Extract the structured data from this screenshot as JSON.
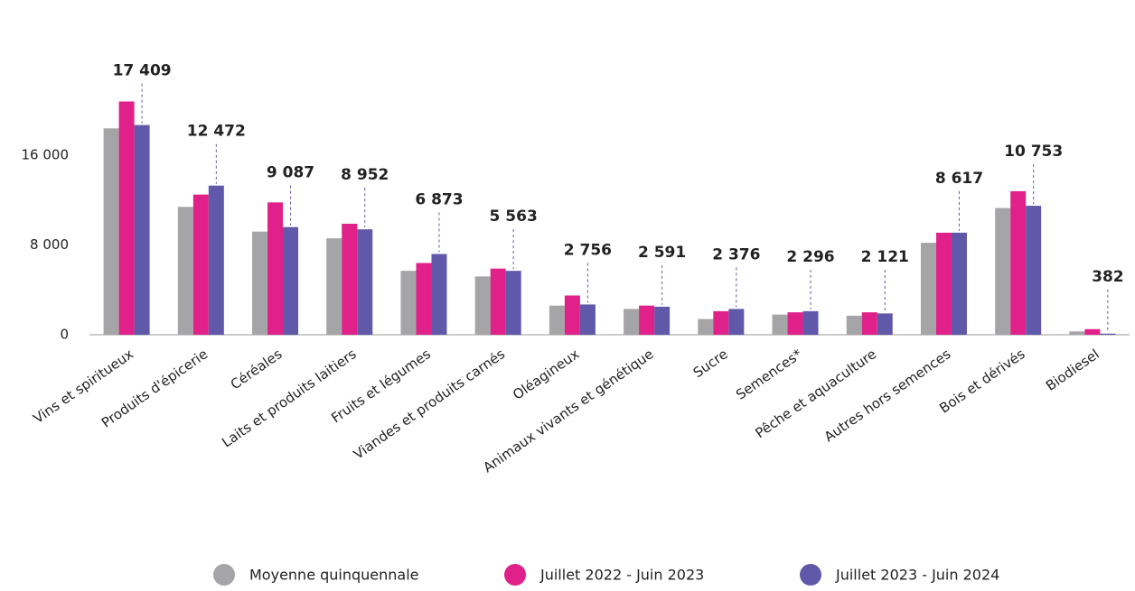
{
  "chart_data": {
    "type": "bar",
    "categories": [
      "Vins et spiritueux",
      "Produits d'épicerie",
      "Céréales",
      "Laits et produits laitiers",
      "Fruits et légumes",
      "Viandes et produits carnés",
      "Oléagineux",
      "Animaux vivants et génétique",
      "Sucre",
      "Semences*",
      "Pêche et aquaculture",
      "Autres hors semences",
      "Bois et dérivés",
      "Biodiesel"
    ],
    "series": [
      {
        "name": "Moyenne quinquennale",
        "color": "#a5a5a7",
        "values": [
          18400,
          11400,
          9200,
          8600,
          5700,
          5200,
          2600,
          2300,
          1400,
          1800,
          1700,
          8200,
          11300,
          300
        ]
      },
      {
        "name": "Juillet 2022 - Juin 2023",
        "color": "#e0218a",
        "values": [
          20800,
          12500,
          11800,
          9900,
          6400,
          5900,
          3500,
          2600,
          2100,
          2000,
          2000,
          9100,
          12800,
          500
        ]
      },
      {
        "name": "Juillet 2023 - Juin 2024",
        "color": "#6058a8",
        "values": [
          18700,
          13300,
          9600,
          9400,
          7200,
          5700,
          2700,
          2500,
          2300,
          2100,
          1900,
          9100,
          11500,
          100
        ]
      }
    ],
    "annotations": [
      "17 409",
      "12 472",
      "9 087",
      "8 952",
      "6 873",
      "5 563",
      "2 756",
      "2 591",
      "2 376",
      "2 296",
      "2 121",
      "8 617",
      "10 753",
      "382"
    ],
    "ylim": [
      0,
      21000
    ],
    "yticks": [
      0,
      {
        "value": 8000,
        "label": "8 000"
      },
      {
        "value": 16000,
        "label": "16 000"
      }
    ]
  }
}
